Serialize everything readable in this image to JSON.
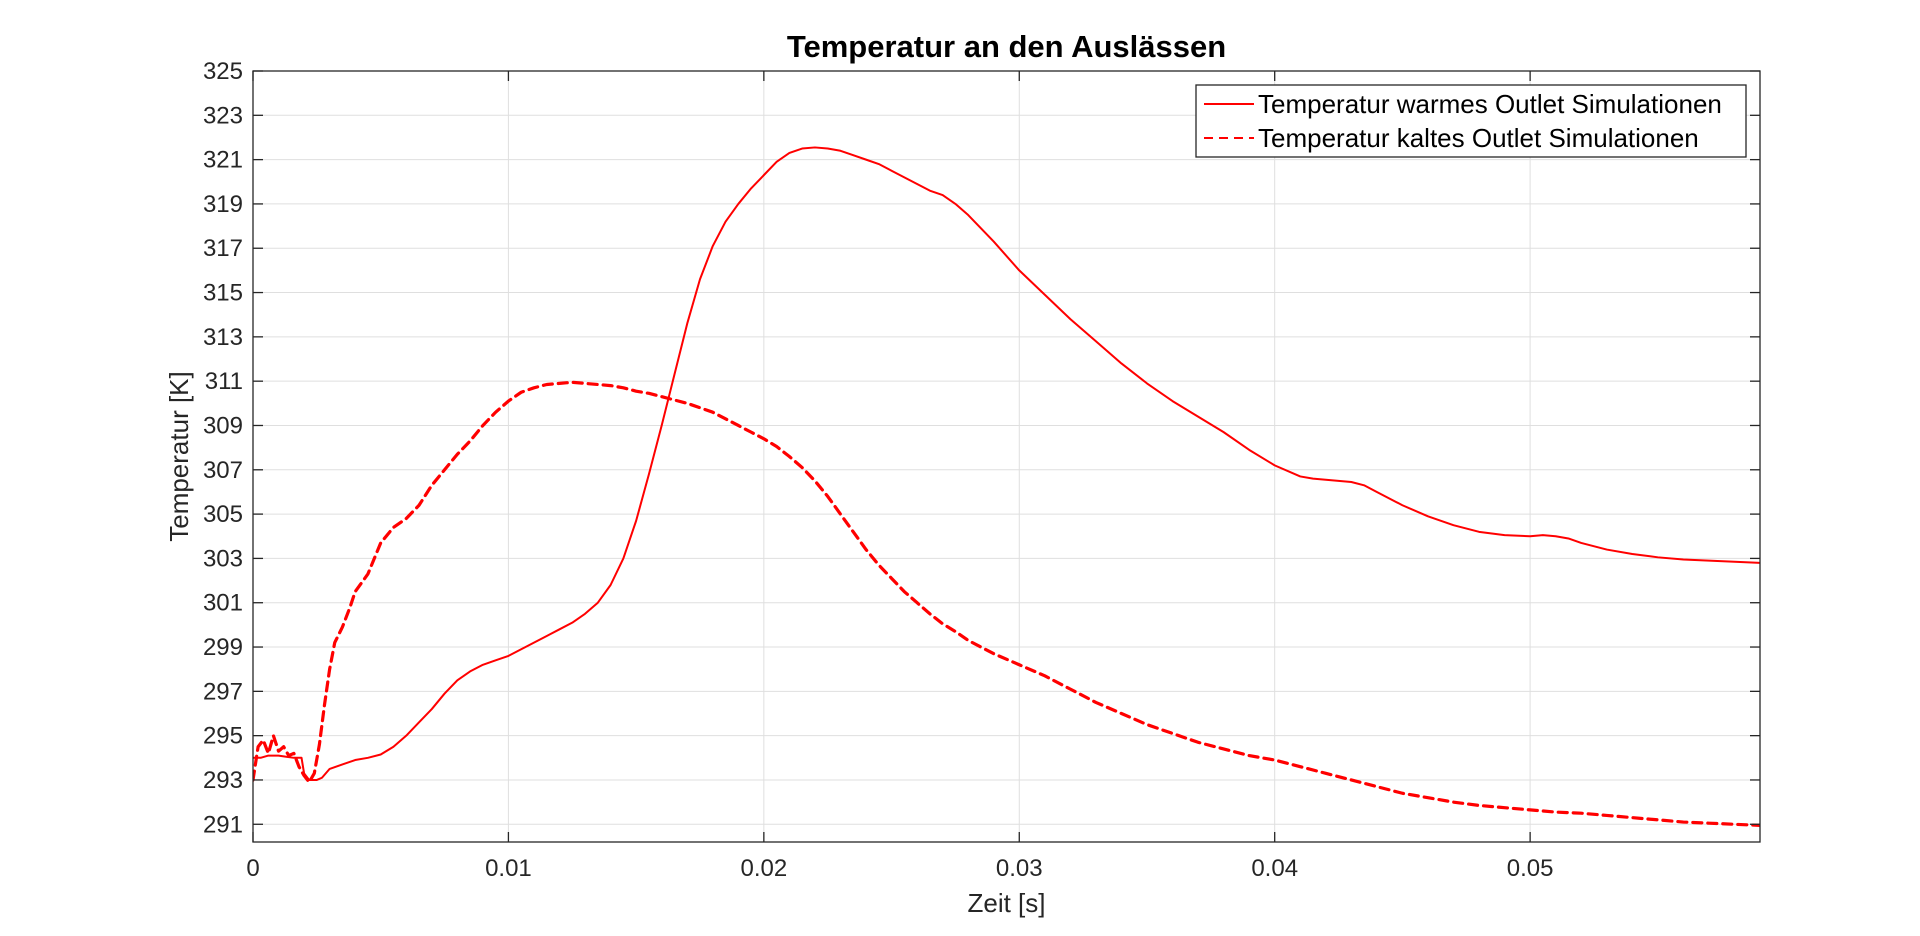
{
  "chart_data": {
    "type": "line",
    "title": "Temperatur an den Auslässen",
    "xlabel": "Zeit [s]",
    "ylabel": "Temperatur [K]",
    "xlim": [
      0,
      0.059
    ],
    "ylim": [
      290.2,
      325
    ],
    "x_ticks": [
      0,
      0.01,
      0.02,
      0.03,
      0.04,
      0.05
    ],
    "x_tick_labels": [
      "0",
      "0.01",
      "0.02",
      "0.03",
      "0.04",
      "0.05"
    ],
    "y_ticks": [
      291,
      293,
      295,
      297,
      299,
      301,
      303,
      305,
      307,
      309,
      311,
      313,
      315,
      317,
      319,
      321,
      323,
      325
    ],
    "y_tick_labels": [
      "291",
      "293",
      "295",
      "297",
      "299",
      "301",
      "303",
      "305",
      "307",
      "309",
      "311",
      "313",
      "315",
      "317",
      "319",
      "321",
      "323",
      "325"
    ],
    "grid": true,
    "legend_position": "top-right",
    "series": [
      {
        "name": "Temperatur warmes Outlet Simulationen",
        "color": "#ff0000",
        "line_style": "solid",
        "x": [
          0,
          0.0003,
          0.0006,
          0.001,
          0.0013,
          0.0016,
          0.0019,
          0.002,
          0.0022,
          0.0025,
          0.0027,
          0.003,
          0.0035,
          0.004,
          0.0045,
          0.005,
          0.0055,
          0.006,
          0.0065,
          0.007,
          0.0075,
          0.008,
          0.0085,
          0.009,
          0.0095,
          0.01,
          0.0105,
          0.011,
          0.0115,
          0.012,
          0.0125,
          0.013,
          0.0135,
          0.014,
          0.0145,
          0.015,
          0.0155,
          0.016,
          0.0165,
          0.017,
          0.0175,
          0.018,
          0.0185,
          0.019,
          0.0195,
          0.02,
          0.0205,
          0.021,
          0.0215,
          0.022,
          0.0225,
          0.023,
          0.0235,
          0.024,
          0.0245,
          0.025,
          0.0255,
          0.026,
          0.0265,
          0.027,
          0.0275,
          0.028,
          0.029,
          0.03,
          0.031,
          0.032,
          0.033,
          0.034,
          0.035,
          0.036,
          0.037,
          0.038,
          0.039,
          0.04,
          0.041,
          0.0415,
          0.042,
          0.0425,
          0.043,
          0.0435,
          0.044,
          0.045,
          0.046,
          0.047,
          0.048,
          0.049,
          0.05,
          0.0505,
          0.051,
          0.0515,
          0.052,
          0.053,
          0.054,
          0.055,
          0.056,
          0.057,
          0.058,
          0.059
        ],
        "y": [
          294,
          294,
          294.1,
          294.1,
          294.05,
          294,
          294,
          293.3,
          293,
          293,
          293.1,
          293.5,
          293.7,
          293.9,
          294,
          294.15,
          294.5,
          295,
          295.6,
          296.2,
          296.9,
          297.5,
          297.9,
          298.2,
          298.4,
          298.6,
          298.9,
          299.2,
          299.5,
          299.8,
          300.1,
          300.5,
          301,
          301.8,
          303,
          304.7,
          306.8,
          309,
          311.3,
          313.6,
          315.6,
          317.1,
          318.2,
          319,
          319.7,
          320.3,
          320.9,
          321.3,
          321.5,
          321.55,
          321.5,
          321.4,
          321.2,
          321,
          320.8,
          320.5,
          320.2,
          319.9,
          319.6,
          319.4,
          319,
          318.5,
          317.3,
          316,
          314.9,
          313.8,
          312.8,
          311.8,
          310.9,
          310.1,
          309.4,
          308.7,
          307.9,
          307.2,
          306.7,
          306.6,
          306.55,
          306.5,
          306.45,
          306.3,
          306,
          305.4,
          304.9,
          304.5,
          304.2,
          304.05,
          304,
          304.05,
          304,
          303.9,
          303.7,
          303.4,
          303.2,
          303.05,
          302.95,
          302.9,
          302.85,
          302.8
        ]
      },
      {
        "name": "Temperatur kaltes Outlet Simulationen",
        "color": "#ff0000",
        "line_style": "dashed",
        "x": [
          0,
          0.0002,
          0.0004,
          0.0006,
          0.0008,
          0.001,
          0.0012,
          0.0014,
          0.0016,
          0.0018,
          0.002,
          0.0022,
          0.0024,
          0.0026,
          0.0028,
          0.003,
          0.0032,
          0.0035,
          0.0038,
          0.004,
          0.0045,
          0.005,
          0.0055,
          0.006,
          0.0065,
          0.007,
          0.0075,
          0.008,
          0.0085,
          0.009,
          0.0095,
          0.01,
          0.0105,
          0.011,
          0.0115,
          0.012,
          0.0125,
          0.013,
          0.0135,
          0.014,
          0.0145,
          0.015,
          0.0155,
          0.016,
          0.0165,
          0.017,
          0.0175,
          0.018,
          0.0185,
          0.019,
          0.0195,
          0.02,
          0.0205,
          0.021,
          0.0215,
          0.022,
          0.0225,
          0.023,
          0.0235,
          0.024,
          0.0245,
          0.025,
          0.0255,
          0.026,
          0.0265,
          0.027,
          0.0275,
          0.028,
          0.029,
          0.03,
          0.031,
          0.032,
          0.033,
          0.034,
          0.035,
          0.036,
          0.037,
          0.038,
          0.039,
          0.04,
          0.041,
          0.042,
          0.043,
          0.044,
          0.045,
          0.046,
          0.047,
          0.048,
          0.049,
          0.05,
          0.051,
          0.052,
          0.053,
          0.054,
          0.055,
          0.056,
          0.057,
          0.058,
          0.059
        ],
        "y": [
          293,
          294.5,
          294.8,
          294.2,
          295,
          294.3,
          294.5,
          294.1,
          294.2,
          293.6,
          293.2,
          292.9,
          293.3,
          294.6,
          296.4,
          298,
          299.2,
          299.9,
          300.8,
          301.5,
          302.3,
          303.7,
          304.4,
          304.8,
          305.4,
          306.3,
          307,
          307.7,
          308.3,
          309,
          309.6,
          310.1,
          310.5,
          310.7,
          310.85,
          310.9,
          310.95,
          310.9,
          310.85,
          310.8,
          310.7,
          310.55,
          310.45,
          310.3,
          310.15,
          310,
          309.8,
          309.6,
          309.3,
          309,
          308.7,
          308.4,
          308.05,
          307.6,
          307.1,
          306.5,
          305.8,
          305,
          304.2,
          303.4,
          302.7,
          302.1,
          301.5,
          301,
          300.5,
          300.05,
          299.7,
          299.3,
          298.7,
          298.2,
          297.7,
          297.1,
          296.5,
          296,
          295.5,
          295.1,
          294.7,
          294.4,
          294.1,
          293.9,
          293.6,
          293.3,
          293,
          292.7,
          292.4,
          292.2,
          292,
          291.85,
          291.75,
          291.65,
          291.55,
          291.5,
          291.4,
          291.3,
          291.2,
          291.1,
          291.05,
          291,
          290.95
        ]
      }
    ]
  }
}
